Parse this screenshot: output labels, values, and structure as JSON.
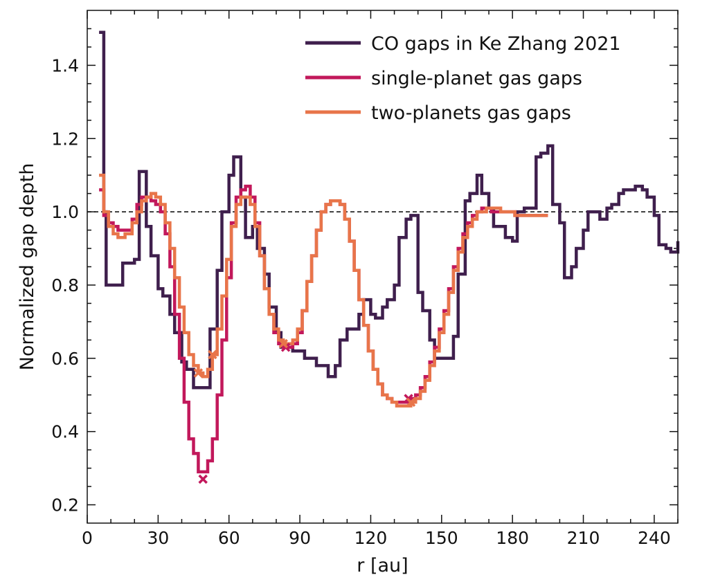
{
  "chart_data": {
    "type": "line",
    "title": "",
    "xlabel": "r [au]",
    "ylabel": "Normalized gap depth",
    "xlim": [
      0,
      250
    ],
    "ylim": [
      0.15,
      1.55
    ],
    "xticks": [
      0,
      30,
      60,
      90,
      120,
      150,
      180,
      210,
      240
    ],
    "yticks": [
      0.2,
      0.4,
      0.6,
      0.8,
      1.0,
      1.2,
      1.4
    ],
    "grid": false,
    "legend_location": "top-right",
    "reference_line": {
      "y": 1.0,
      "style": "dashed",
      "color": "#000000"
    },
    "series": [
      {
        "name": "CO gaps in Ke Zhang 2021",
        "color": "#3f1f4d",
        "style": "steps",
        "x": [
          5,
          7,
          8,
          10,
          15,
          20,
          22,
          25,
          27,
          30,
          32,
          35,
          37,
          40,
          42,
          45,
          47,
          52,
          55,
          57,
          60,
          62,
          65,
          67,
          70,
          72,
          75,
          77,
          80,
          82,
          85,
          87,
          92,
          95,
          97,
          102,
          105,
          107,
          110,
          115,
          117,
          120,
          122,
          125,
          127,
          130,
          132,
          135,
          137,
          140,
          142,
          145,
          147,
          152,
          155,
          157,
          160,
          162,
          165,
          167,
          170,
          172,
          177,
          180,
          182,
          185,
          187,
          190,
          192,
          195,
          197,
          200,
          202,
          205,
          207,
          210,
          212,
          215,
          217,
          220,
          222,
          225,
          227,
          232,
          235,
          237,
          240,
          242,
          245,
          247,
          250
        ],
        "y": [
          1.49,
          1.0,
          0.8,
          0.8,
          0.86,
          0.87,
          1.11,
          0.96,
          0.88,
          0.79,
          0.77,
          0.72,
          0.67,
          0.59,
          0.57,
          0.52,
          0.52,
          0.68,
          0.84,
          1.0,
          1.1,
          1.15,
          1.04,
          0.93,
          0.96,
          0.9,
          0.83,
          0.74,
          0.67,
          0.63,
          0.63,
          0.62,
          0.6,
          0.6,
          0.58,
          0.55,
          0.58,
          0.65,
          0.68,
          0.72,
          0.76,
          0.72,
          0.71,
          0.74,
          0.76,
          0.8,
          0.93,
          0.98,
          0.99,
          0.78,
          0.73,
          0.65,
          0.6,
          0.6,
          0.66,
          0.83,
          1.03,
          1.05,
          1.1,
          1.05,
          1.01,
          0.96,
          0.93,
          0.92,
          1.0,
          1.01,
          1.01,
          1.15,
          1.16,
          1.18,
          1.02,
          0.97,
          0.82,
          0.85,
          0.9,
          0.95,
          1.0,
          1.0,
          0.98,
          1.01,
          1.02,
          1.05,
          1.06,
          1.07,
          1.06,
          1.04,
          0.99,
          0.91,
          0.9,
          0.89,
          0.92
        ]
      },
      {
        "name": "single-planet gas gaps",
        "color": "#c2185b",
        "style": "steps",
        "x": [
          5,
          7,
          9,
          11,
          13,
          16,
          19,
          21,
          23,
          25,
          27,
          29,
          31,
          33,
          35,
          37,
          39,
          41,
          43,
          45,
          47,
          49,
          51,
          53,
          55,
          57,
          59,
          61,
          63,
          65,
          67,
          69,
          71,
          73,
          75,
          77,
          79,
          81,
          83,
          85,
          87,
          89,
          91,
          93,
          95,
          97,
          99,
          101,
          103,
          105,
          107,
          109,
          111,
          113,
          115,
          117,
          119,
          121,
          123,
          125,
          127,
          129,
          131,
          133,
          135,
          137,
          139,
          141,
          143,
          145,
          147,
          149,
          151,
          153,
          155,
          157,
          159,
          161,
          163,
          165,
          167,
          169,
          171,
          173,
          175,
          177,
          179,
          181,
          183,
          185,
          187,
          189,
          191,
          193,
          195
        ],
        "y": [
          1.06,
          0.99,
          0.97,
          0.96,
          0.95,
          0.95,
          0.98,
          1.02,
          1.04,
          1.04,
          1.03,
          1.02,
          1.0,
          0.94,
          0.85,
          0.72,
          0.6,
          0.48,
          0.38,
          0.34,
          0.29,
          0.29,
          0.32,
          0.38,
          0.5,
          0.65,
          0.82,
          0.97,
          1.04,
          1.06,
          1.07,
          1.04,
          0.97,
          0.88,
          0.79,
          0.72,
          0.67,
          0.64,
          0.63,
          0.63,
          0.64,
          0.67,
          0.73,
          0.81,
          0.88,
          0.95,
          1.0,
          1.02,
          1.03,
          1.03,
          1.02,
          0.98,
          0.92,
          0.84,
          0.76,
          0.69,
          0.62,
          0.57,
          0.53,
          0.5,
          0.49,
          0.48,
          0.48,
          0.48,
          0.48,
          0.49,
          0.5,
          0.52,
          0.55,
          0.59,
          0.63,
          0.68,
          0.73,
          0.79,
          0.85,
          0.9,
          0.94,
          0.97,
          0.99,
          1.0,
          1.01,
          1.01,
          1.0,
          1.0,
          1.0,
          1.0,
          1.0,
          0.99,
          0.99,
          0.99,
          0.99,
          0.99,
          0.99,
          0.99,
          0.99
        ]
      },
      {
        "name": "two-planets gas gaps",
        "color": "#e8754a",
        "style": "steps",
        "x": [
          5,
          7,
          9,
          11,
          13,
          16,
          19,
          21,
          23,
          25,
          27,
          29,
          31,
          33,
          35,
          37,
          39,
          41,
          43,
          45,
          47,
          49,
          51,
          53,
          55,
          57,
          59,
          61,
          63,
          65,
          67,
          69,
          71,
          73,
          75,
          77,
          79,
          81,
          83,
          85,
          87,
          89,
          91,
          93,
          95,
          97,
          99,
          101,
          103,
          105,
          107,
          109,
          111,
          113,
          115,
          117,
          119,
          121,
          123,
          125,
          127,
          129,
          131,
          133,
          135,
          137,
          139,
          141,
          143,
          145,
          147,
          149,
          151,
          153,
          155,
          157,
          159,
          161,
          163,
          165,
          167,
          169,
          171,
          173,
          175,
          177,
          179,
          181,
          183,
          185,
          187,
          189,
          191,
          193,
          195
        ],
        "y": [
          1.1,
          1.0,
          0.96,
          0.94,
          0.93,
          0.94,
          0.97,
          1.0,
          1.03,
          1.04,
          1.05,
          1.04,
          1.02,
          0.97,
          0.9,
          0.82,
          0.74,
          0.67,
          0.61,
          0.58,
          0.56,
          0.55,
          0.57,
          0.61,
          0.68,
          0.77,
          0.87,
          0.96,
          1.02,
          1.04,
          1.04,
          1.02,
          0.96,
          0.88,
          0.79,
          0.72,
          0.68,
          0.65,
          0.64,
          0.64,
          0.65,
          0.68,
          0.73,
          0.81,
          0.88,
          0.95,
          1.0,
          1.02,
          1.03,
          1.03,
          1.02,
          0.98,
          0.92,
          0.84,
          0.76,
          0.69,
          0.62,
          0.57,
          0.53,
          0.5,
          0.49,
          0.48,
          0.47,
          0.47,
          0.47,
          0.48,
          0.49,
          0.51,
          0.54,
          0.58,
          0.62,
          0.67,
          0.72,
          0.78,
          0.84,
          0.89,
          0.93,
          0.96,
          0.98,
          1.0,
          1.0,
          1.01,
          1.01,
          1.01,
          1.0,
          1.0,
          1.0,
          0.99,
          0.99,
          0.99,
          0.99,
          0.99,
          0.99,
          0.99,
          0.99
        ]
      }
    ],
    "markers": [
      {
        "series": "single-planet gas gaps",
        "shape": "x",
        "points": [
          [
            49,
            0.27
          ],
          [
            84,
            0.63
          ],
          [
            136,
            0.49
          ]
        ]
      },
      {
        "series": "two-planets gas gaps",
        "shape": "x",
        "points": [
          [
            47,
            0.56
          ],
          [
            53,
            0.61
          ],
          [
            83,
            0.64
          ],
          [
            137,
            0.48
          ]
        ]
      }
    ]
  }
}
